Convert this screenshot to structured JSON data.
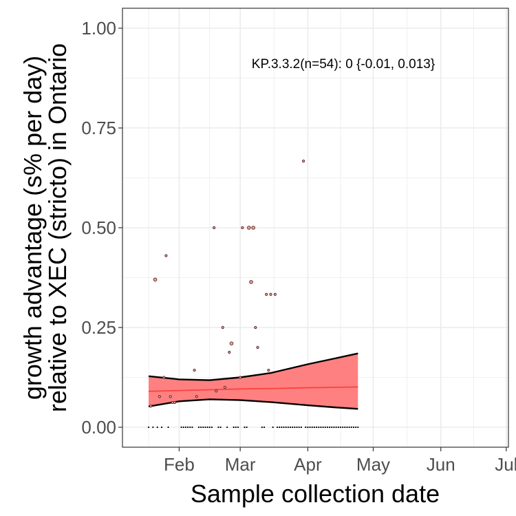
{
  "chart_data": {
    "type": "scatter",
    "title": "",
    "xlabel": "Sample collection date",
    "ylabel_lines": [
      "growth advantage (s% per day)",
      "relative to XEC (stricto) in Ontario"
    ],
    "annotation": "KP.3.3.2(n=54): 0 {-0.01, 0.013}",
    "x_tick_labels": [
      "Feb",
      "Mar",
      "Apr",
      "May",
      "Jun",
      "Jul"
    ],
    "x_tick_dates": [
      "2025-02-01",
      "2025-03-01",
      "2025-04-01",
      "2025-05-01",
      "2025-06-01",
      "2025-07-01"
    ],
    "xlim": [
      "2025-01-06",
      "2025-07-02"
    ],
    "y_ticks": [
      0,
      0.25,
      0.5,
      0.75,
      1
    ],
    "y_tick_labels": [
      "0.00",
      "0.25",
      "0.50",
      "0.75",
      "1.00"
    ],
    "ylim": [
      -0.05,
      1.05
    ],
    "grid": true,
    "colors": {
      "fit_line": "#f8433f",
      "ribbon_fill": "#ff8080",
      "ribbon_edge": "#000000",
      "point_fill": "#f4a6a6",
      "point_edge": "#5a2a2a",
      "grid": "#ebebeb"
    },
    "points": [
      {
        "date": "2025-01-19",
        "y": 0.053,
        "size": 2
      },
      {
        "date": "2025-01-21",
        "y": 0.37,
        "size": 3
      },
      {
        "date": "2025-01-23",
        "y": 0.077,
        "size": 2
      },
      {
        "date": "2025-01-25",
        "y": 0.125,
        "size": 2
      },
      {
        "date": "2025-01-26",
        "y": 0.43,
        "size": 2
      },
      {
        "date": "2025-01-28",
        "y": 0.077,
        "size": 2
      },
      {
        "date": "2025-01-29",
        "y": 0.062,
        "size": 2
      },
      {
        "date": "2025-01-30",
        "y": 0.062,
        "size": 2
      },
      {
        "date": "2025-02-08",
        "y": 0.143,
        "size": 2
      },
      {
        "date": "2025-02-09",
        "y": 0.077,
        "size": 2
      },
      {
        "date": "2025-02-17",
        "y": 0.5,
        "size": 2
      },
      {
        "date": "2025-02-18",
        "y": 0.091,
        "size": 2
      },
      {
        "date": "2025-02-21",
        "y": 0.25,
        "size": 2
      },
      {
        "date": "2025-02-22",
        "y": 0.1,
        "size": 2
      },
      {
        "date": "2025-02-24",
        "y": 0.188,
        "size": 2
      },
      {
        "date": "2025-02-25",
        "y": 0.21,
        "size": 3
      },
      {
        "date": "2025-03-01",
        "y": 0.125,
        "size": 2
      },
      {
        "date": "2025-03-02",
        "y": 0.5,
        "size": 2
      },
      {
        "date": "2025-03-05",
        "y": 0.5,
        "size": 3
      },
      {
        "date": "2025-03-06",
        "y": 0.364,
        "size": 3
      },
      {
        "date": "2025-03-07",
        "y": 0.5,
        "size": 3
      },
      {
        "date": "2025-03-08",
        "y": 0.25,
        "size": 2
      },
      {
        "date": "2025-03-09",
        "y": 0.2,
        "size": 2
      },
      {
        "date": "2025-03-13",
        "y": 0.333,
        "size": 2
      },
      {
        "date": "2025-03-14",
        "y": 0.143,
        "size": 2
      },
      {
        "date": "2025-03-15",
        "y": 0.333,
        "size": 2
      },
      {
        "date": "2025-03-17",
        "y": 0.333,
        "size": 2
      },
      {
        "date": "2025-03-30",
        "y": 0.667,
        "size": 2
      }
    ],
    "zero_dates": [
      "2025-01-18",
      "2025-01-20",
      "2025-01-22",
      "2025-01-24",
      "2025-01-27",
      "2025-02-02",
      "2025-02-03",
      "2025-02-04",
      "2025-02-05",
      "2025-02-06",
      "2025-02-07",
      "2025-02-10",
      "2025-02-11",
      "2025-02-12",
      "2025-02-13",
      "2025-02-14",
      "2025-02-15",
      "2025-02-16",
      "2025-02-19",
      "2025-02-20",
      "2025-02-23",
      "2025-02-26",
      "2025-02-27",
      "2025-02-28",
      "2025-03-03",
      "2025-03-04",
      "2025-03-11",
      "2025-03-12",
      "2025-03-16",
      "2025-03-18",
      "2025-03-19",
      "2025-03-20",
      "2025-03-21",
      "2025-03-22",
      "2025-03-23",
      "2025-03-24",
      "2025-03-25",
      "2025-03-26",
      "2025-03-27",
      "2025-03-28",
      "2025-03-29",
      "2025-03-31",
      "2025-04-01",
      "2025-04-02",
      "2025-04-03",
      "2025-04-04",
      "2025-04-05",
      "2025-04-06",
      "2025-04-07",
      "2025-04-08",
      "2025-04-09",
      "2025-04-10",
      "2025-04-11",
      "2025-04-12",
      "2025-04-13",
      "2025-04-14",
      "2025-04-15",
      "2025-04-16",
      "2025-04-17",
      "2025-04-18",
      "2025-04-19",
      "2025-04-20",
      "2025-04-21",
      "2025-04-22",
      "2025-04-23",
      "2025-04-24"
    ],
    "fit": [
      {
        "date": "2025-01-18",
        "y": 0.09,
        "lo": 0.052,
        "hi": 0.128
      },
      {
        "date": "2025-02-01",
        "y": 0.092,
        "lo": 0.065,
        "hi": 0.12
      },
      {
        "date": "2025-02-15",
        "y": 0.094,
        "lo": 0.07,
        "hi": 0.118
      },
      {
        "date": "2025-03-01",
        "y": 0.096,
        "lo": 0.068,
        "hi": 0.125
      },
      {
        "date": "2025-03-15",
        "y": 0.097,
        "lo": 0.063,
        "hi": 0.136
      },
      {
        "date": "2025-04-01",
        "y": 0.099,
        "lo": 0.055,
        "hi": 0.158
      },
      {
        "date": "2025-04-13",
        "y": 0.1,
        "lo": 0.05,
        "hi": 0.172
      },
      {
        "date": "2025-04-24",
        "y": 0.101,
        "lo": 0.046,
        "hi": 0.185
      }
    ]
  }
}
